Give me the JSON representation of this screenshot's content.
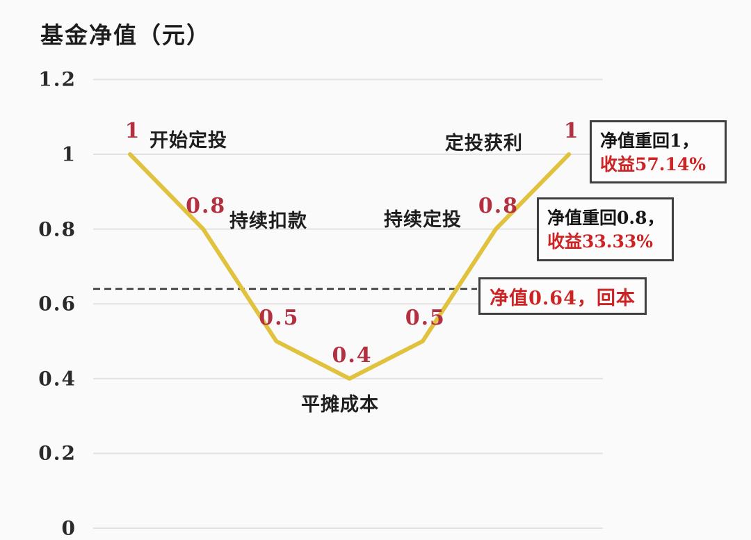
{
  "title": "基金净值（元）",
  "colors": {
    "background": "#fbfafa",
    "curve": "#e0c23e",
    "grid": "#e3e1e1",
    "dashed_line": "#4d4d4d",
    "point_label_red": "#b23040",
    "callout_red": "#cc2424",
    "text_black": "#1e1e1e",
    "box_border": "#3f3f3f"
  },
  "y_axis": {
    "ticks": [
      "1.2",
      "1",
      "0.8",
      "0.6",
      "0.4",
      "0.2",
      "0"
    ]
  },
  "chart_data": {
    "type": "line",
    "title": "基金净值（元）",
    "x": [
      0,
      1,
      2,
      3,
      4,
      5,
      6
    ],
    "values": [
      1,
      0.8,
      0.5,
      0.4,
      0.5,
      0.8,
      1
    ],
    "point_labels": [
      "1",
      "0.8",
      "0.5",
      "0.4",
      "0.5",
      "0.8",
      "1"
    ],
    "ylabel": "基金净值（元）",
    "xlabel": "",
    "ylim": [
      0,
      1.2
    ],
    "y_tick_step": 0.2,
    "grid": true,
    "line_color": "#e0c23e",
    "reference_line": {
      "value": 0.64,
      "style": "dashed",
      "meaning": "回本线"
    }
  },
  "annotations": {
    "start_invest": "开始定投",
    "keep_deducting": "持续扣款",
    "average_cost": "平摊成本",
    "keep_investing": "持续定投",
    "invest_profit": "定投获利"
  },
  "callouts": {
    "box_return_1": {
      "line1": "净值重回1，",
      "line2": "收益57.14%"
    },
    "box_return_08": {
      "line1": "净值重回0.8，",
      "line2": "收益33.33%"
    },
    "box_breakeven": {
      "text": "净值0.64，回本"
    }
  }
}
